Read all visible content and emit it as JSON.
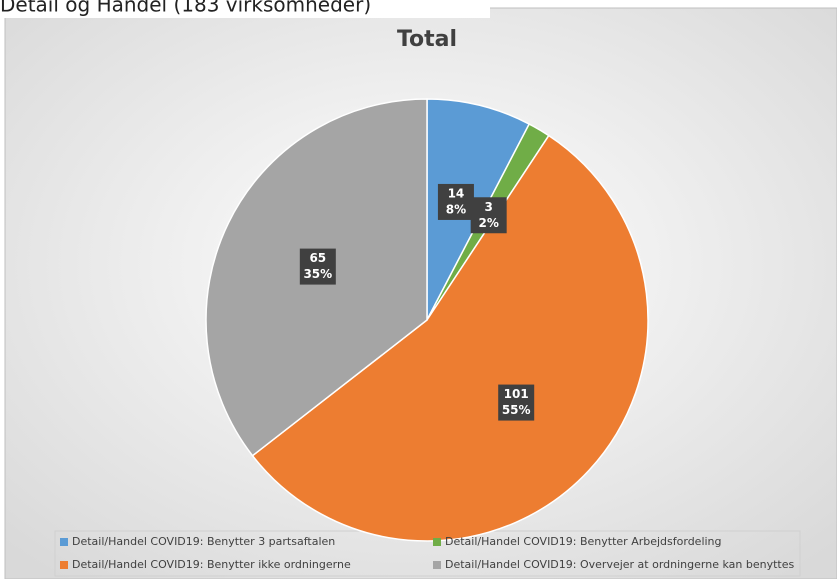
{
  "header": "Detail og Handel (183 virksomheder)",
  "chart_data": {
    "type": "pie",
    "title": "Total",
    "categories": [
      "Detail/Handel COVID19: Benytter 3 partsaftalen",
      "Detail/Handel COVID19: Benytter Arbejdsfordeling",
      "Detail/Handel COVID19: Benytter ikke ordningerne",
      "Detail/Handel COVID19: Overvejer at ordningerne kan benyttes"
    ],
    "values": [
      14,
      3,
      101,
      65
    ],
    "percent_labels": [
      "8%",
      "2%",
      "55%",
      "35%"
    ],
    "colors": [
      "#5b9bd5",
      "#70ad47",
      "#ed7d31",
      "#a5a5a5"
    ],
    "legend": "bottom"
  }
}
